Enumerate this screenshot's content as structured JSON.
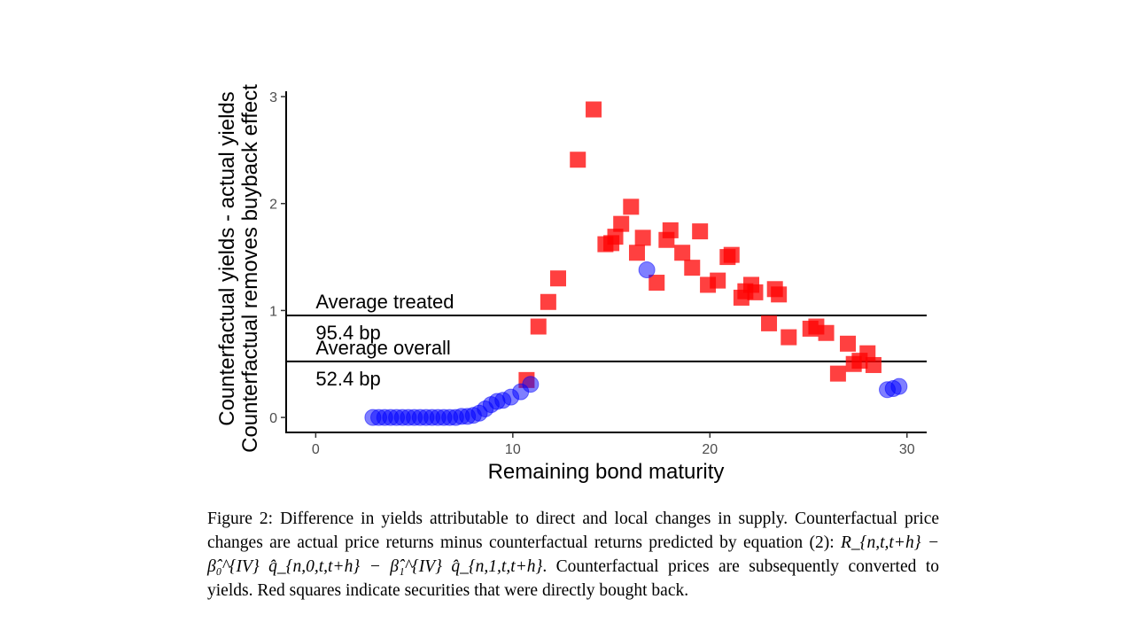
{
  "chart_data": {
    "type": "scatter",
    "xlabel": "Remaining bond maturity",
    "ylabel_lines": [
      "Counterfactual yields - actual yields",
      "Counterfactual removes buyback effect"
    ],
    "xlim": [
      -1.5,
      31
    ],
    "ylim": [
      -0.14,
      3.05
    ],
    "x_ticks": [
      0,
      10,
      20,
      30
    ],
    "y_ticks": [
      0,
      1,
      2,
      3
    ],
    "grid": false,
    "series": [
      {
        "marker": "square",
        "color": "#ff0000",
        "points": [
          [
            10.7,
            0.35
          ],
          [
            11.3,
            0.85
          ],
          [
            11.8,
            1.08
          ],
          [
            12.3,
            1.3
          ],
          [
            13.3,
            2.41
          ],
          [
            14.1,
            2.88
          ],
          [
            14.7,
            1.62
          ],
          [
            15.0,
            1.63
          ],
          [
            15.2,
            1.69
          ],
          [
            15.5,
            1.81
          ],
          [
            16.0,
            1.97
          ],
          [
            16.3,
            1.54
          ],
          [
            16.6,
            1.68
          ],
          [
            17.3,
            1.26
          ],
          [
            17.8,
            1.66
          ],
          [
            18.0,
            1.75
          ],
          [
            18.6,
            1.54
          ],
          [
            19.1,
            1.4
          ],
          [
            19.5,
            1.74
          ],
          [
            19.9,
            1.24
          ],
          [
            20.4,
            1.28
          ],
          [
            20.9,
            1.5
          ],
          [
            21.1,
            1.52
          ],
          [
            21.6,
            1.12
          ],
          [
            21.8,
            1.18
          ],
          [
            22.1,
            1.24
          ],
          [
            22.3,
            1.17
          ],
          [
            23.0,
            0.88
          ],
          [
            23.3,
            1.2
          ],
          [
            23.5,
            1.15
          ],
          [
            24.0,
            0.75
          ],
          [
            25.1,
            0.83
          ],
          [
            25.4,
            0.85
          ],
          [
            25.9,
            0.79
          ],
          [
            26.5,
            0.41
          ],
          [
            27.0,
            0.69
          ],
          [
            27.3,
            0.5
          ],
          [
            27.6,
            0.53
          ],
          [
            28.0,
            0.6
          ],
          [
            28.3,
            0.49
          ]
        ]
      },
      {
        "marker": "circle",
        "color": "#0000ff",
        "points": [
          [
            2.9,
            0.0
          ],
          [
            3.2,
            0.0
          ],
          [
            3.5,
            0.0
          ],
          [
            3.8,
            0.0
          ],
          [
            4.1,
            0.0
          ],
          [
            4.4,
            0.0
          ],
          [
            4.7,
            0.0
          ],
          [
            5.0,
            0.0
          ],
          [
            5.3,
            0.0
          ],
          [
            5.6,
            0.0
          ],
          [
            5.9,
            0.0
          ],
          [
            6.2,
            0.0
          ],
          [
            6.5,
            0.0
          ],
          [
            6.8,
            0.0
          ],
          [
            7.1,
            0.0
          ],
          [
            7.4,
            0.01
          ],
          [
            7.7,
            0.01
          ],
          [
            8.0,
            0.02
          ],
          [
            8.3,
            0.04
          ],
          [
            8.6,
            0.08
          ],
          [
            8.9,
            0.12
          ],
          [
            9.2,
            0.15
          ],
          [
            9.5,
            0.16
          ],
          [
            9.9,
            0.19
          ],
          [
            10.4,
            0.24
          ],
          [
            10.9,
            0.31
          ],
          [
            16.8,
            1.38
          ],
          [
            29.0,
            0.26
          ],
          [
            29.3,
            0.27
          ],
          [
            29.6,
            0.29
          ]
        ]
      }
    ],
    "hlines": [
      {
        "y": 0.954,
        "label": "Average treated",
        "value_label": "95.4 bp"
      },
      {
        "y": 0.524,
        "label": "Average overall",
        "value_label": "52.4 bp"
      }
    ]
  },
  "caption": {
    "prefix": "Figure 2:  Difference in yields attributable to direct and local changes in supply.  Counterfactual price changes are actual price returns minus counterfactual returns predicted by equation (2): ",
    "equation": "R_{n,t,t+h} − β̂₀^{IV} q̂_{n,0,t,t+h} − β̂₁^{IV} q̂_{n,1,t,t+h}",
    "suffix": ".  Counterfactual prices are subsequently converted to yields.  Red squares indicate securities that were directly bought back."
  }
}
